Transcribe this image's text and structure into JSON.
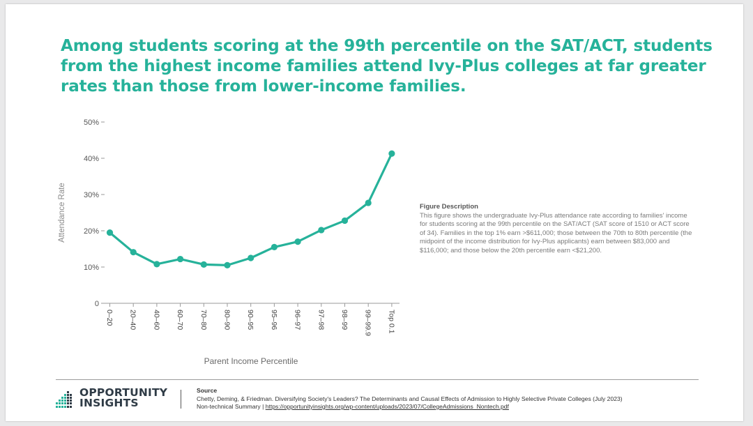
{
  "headline": "Among students scoring at the 99th percentile on the SAT/ACT, students from the highest income families attend Ivy-Plus colleges at far greater rates than those from lower-income families.",
  "figure_description": {
    "title": "Figure Description",
    "text": "This figure shows the undergraduate Ivy-Plus attendance rate according to families' income for students scoring at the 99th percentile on the SAT/ACT (SAT score of 1510 or ACT score of 34). Families in the top 1% earn >$611,000; those between the 70th to 80th percentile (the midpoint of the income distribution for Ivy-Plus applicants) earn between $83,000 and $116,000; and those below the 20th percentile earn <$21,200."
  },
  "logo": {
    "line1": "OPPORTUNITY",
    "line2": "INSIGHTS"
  },
  "source": {
    "title": "Source",
    "citation": "Chetty, Deming, & Friedman. Diversifying Society's Leaders? The Determinants and Causal Effects of Admission to Highly Selective Private Colleges (July 2023)",
    "prefix": "Non-technical Summary | ",
    "link": "https://opportunityinsights.org/wp-content/uploads/2023/07/CollegeAdmissions_Nontech.pdf"
  },
  "colors": {
    "accent": "#26b29a",
    "logo_dark": "#2f3b46"
  },
  "chart_data": {
    "type": "line",
    "xlabel": "Parent Income Percentile",
    "ylabel": "Attendance Rate",
    "categories": [
      "0–20",
      "20–40",
      "40–60",
      "60–70",
      "70–80",
      "80–90",
      "90–95",
      "95–96",
      "96–97",
      "97–98",
      "98–99",
      "99–99.9",
      "Top 0.1"
    ],
    "values": [
      19.5,
      14.1,
      10.8,
      12.2,
      10.7,
      10.5,
      12.5,
      15.5,
      17.0,
      20.2,
      22.8,
      27.7,
      41.3
    ],
    "yticks": [
      "0",
      "10%",
      "20%",
      "30%",
      "40%",
      "50%"
    ],
    "ylim": [
      0,
      50
    ],
    "grid": false,
    "legend": "none"
  }
}
